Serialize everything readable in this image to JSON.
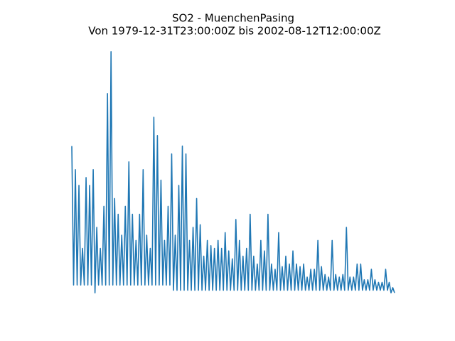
{
  "chart_data": {
    "type": "line",
    "title": "SO2 - MuenchenPasing",
    "subtitle": "Von 1979-12-31T23:00:00Z bis 2002-08-12T12:00:00Z",
    "color": "#1f77b4",
    "ylim": [
      0,
      100
    ],
    "values": [
      60,
      7,
      51,
      7,
      45,
      7,
      21,
      7,
      48,
      7,
      45,
      7,
      51,
      4,
      29,
      7,
      21,
      7,
      37,
      7,
      80,
      7,
      96,
      7,
      40,
      7,
      34,
      7,
      26,
      7,
      37,
      7,
      54,
      7,
      34,
      7,
      24,
      7,
      34,
      7,
      51,
      7,
      26,
      7,
      21,
      7,
      71,
      7,
      64,
      7,
      47,
      7,
      24,
      7,
      37,
      7,
      57,
      5,
      26,
      5,
      45,
      5,
      60,
      5,
      57,
      5,
      24,
      5,
      29,
      5,
      40,
      5,
      30,
      5,
      18,
      5,
      24,
      5,
      22,
      5,
      21,
      5,
      24,
      5,
      21,
      5,
      27,
      5,
      20,
      5,
      17,
      5,
      32,
      5,
      24,
      5,
      18,
      5,
      21,
      5,
      34,
      5,
      18,
      5,
      15,
      5,
      24,
      5,
      20,
      5,
      34,
      5,
      15,
      5,
      13,
      5,
      27,
      5,
      14,
      5,
      18,
      5,
      15,
      5,
      20,
      5,
      15,
      5,
      14,
      5,
      15,
      5,
      10,
      5,
      13,
      5,
      13,
      5,
      24,
      5,
      14,
      5,
      11,
      5,
      10,
      5,
      24,
      5,
      11,
      5,
      10,
      5,
      11,
      5,
      29,
      5,
      10,
      5,
      10,
      5,
      15,
      5,
      15,
      5,
      9,
      5,
      9,
      5,
      13,
      5,
      9,
      5,
      8,
      5,
      8,
      5,
      13,
      5,
      8,
      4,
      6,
      4
    ]
  }
}
